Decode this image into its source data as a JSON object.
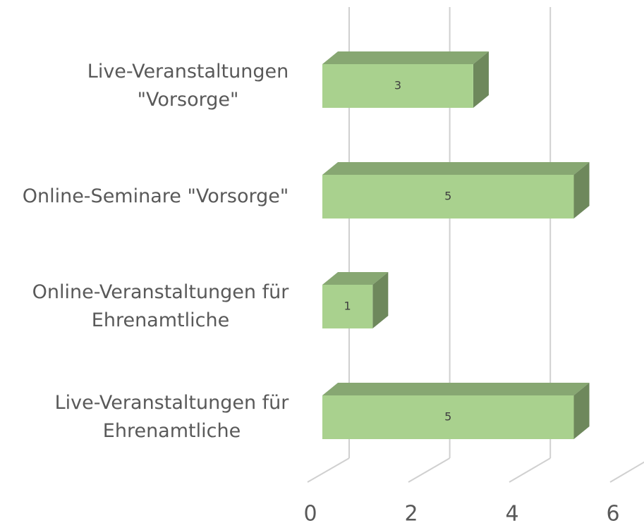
{
  "chart_data": {
    "type": "bar3d_horizontal",
    "categories": [
      "Live-Veranstaltungen \"Vorsorge\"",
      "Online-Seminare \"Vorsorge\"",
      "Online-Veranstaltungen für Ehrenamtliche",
      "Live-Veranstaltungen für Ehrenamtliche"
    ],
    "values": [
      3,
      5,
      1,
      5
    ],
    "color": "#a9d18e",
    "xlim": [
      0,
      6
    ],
    "xticks": [
      0,
      2,
      4,
      6
    ],
    "grid": true
  }
}
